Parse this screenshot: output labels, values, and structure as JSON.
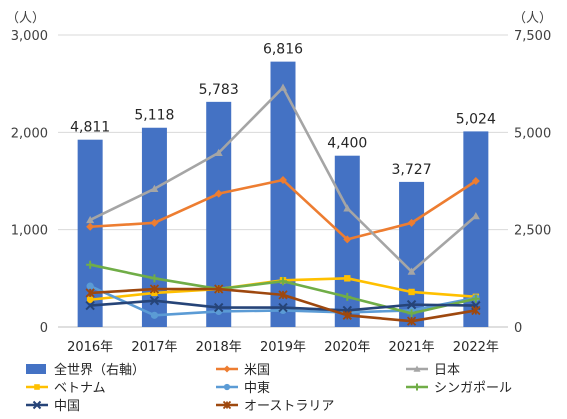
{
  "chart_data": {
    "type": "bar+line",
    "categories": [
      "2016年",
      "2017年",
      "2018年",
      "2019年",
      "2020年",
      "2021年",
      "2022年"
    ],
    "left_axis": {
      "unit": "（人）",
      "ylim": [
        0,
        3000
      ],
      "ticks": [
        "0",
        "1,000",
        "2,000",
        "3,000"
      ],
      "tick_values": [
        0,
        1000,
        2000,
        3000
      ]
    },
    "right_axis": {
      "unit": "（人）",
      "ylim": [
        0,
        7500
      ],
      "ticks": [
        "0",
        "2,500",
        "5,000",
        "7,500"
      ],
      "tick_values": [
        0,
        2500,
        5000,
        7500
      ]
    },
    "bar_series": {
      "name": "全世界（右軸）",
      "axis": "right",
      "values": [
        4811,
        5118,
        5783,
        6816,
        4400,
        3727,
        5024
      ],
      "labels": [
        "4,811",
        "5,118",
        "5,783",
        "6,816",
        "4,400",
        "3,727",
        "5,024"
      ],
      "color": "#4472C4"
    },
    "line_series": [
      {
        "name": "米国",
        "values": [
          1030,
          1070,
          1370,
          1510,
          900,
          1070,
          1500
        ],
        "color": "#ED7D31",
        "marker": "diamond"
      },
      {
        "name": "日本",
        "values": [
          1100,
          1420,
          1790,
          2460,
          1220,
          570,
          1140
        ],
        "color": "#A5A5A5",
        "marker": "triangle"
      },
      {
        "name": "ベトナム",
        "values": [
          280,
          350,
          390,
          480,
          500,
          360,
          310
        ],
        "color": "#FFC000",
        "marker": "square"
      },
      {
        "name": "中東",
        "values": [
          420,
          120,
          160,
          170,
          150,
          170,
          300
        ],
        "color": "#5B9BD5",
        "marker": "circle"
      },
      {
        "name": "シンガポール",
        "values": [
          640,
          500,
          390,
          470,
          310,
          140,
          290
        ],
        "color": "#70AD47",
        "marker": "plus"
      },
      {
        "name": "中国",
        "values": [
          220,
          270,
          200,
          200,
          170,
          230,
          220
        ],
        "color": "#264478",
        "marker": "x"
      },
      {
        "name": "オーストラリア",
        "values": [
          350,
          390,
          390,
          330,
          120,
          60,
          170
        ],
        "color": "#9E480E",
        "marker": "asterisk"
      }
    ],
    "legend_position": "bottom",
    "gridlines": true
  }
}
